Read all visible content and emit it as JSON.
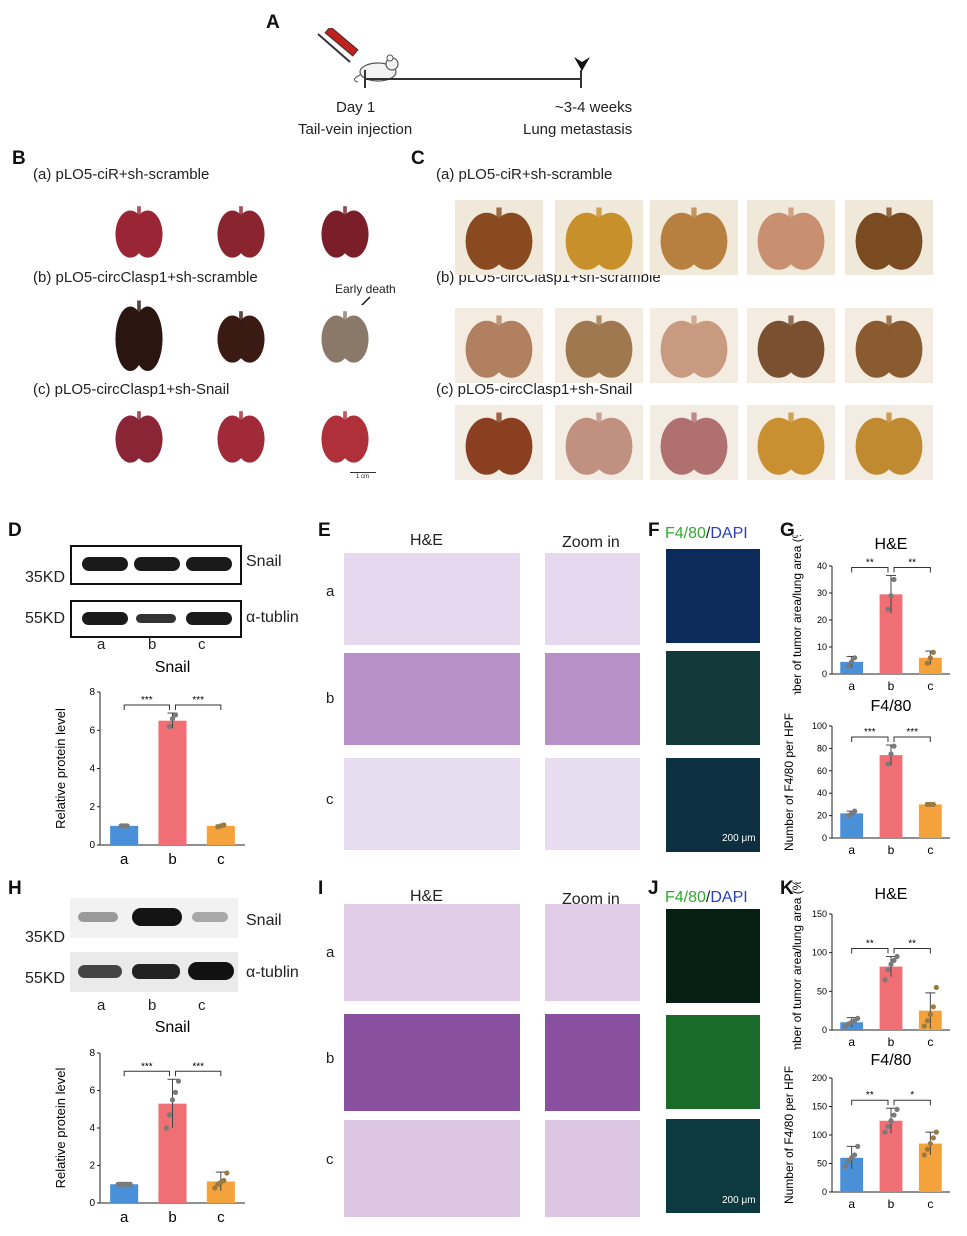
{
  "panel_labels": {
    "A": "A",
    "B": "B",
    "C": "C",
    "D": "D",
    "E": "E",
    "F": "F",
    "G": "G",
    "H": "H",
    "I": "I",
    "J": "J",
    "K": "K"
  },
  "timeline": {
    "day1": "Day 1",
    "injection": "Tail-vein injection",
    "weeks": "~3-4 weeks",
    "metastasis": "Lung metastasis"
  },
  "groups": {
    "a": "(a) pLO5-ciR+sh-scramble",
    "b": "(b) pLO5-circClasp1+sh-scramble",
    "c": "(c) pLO5-circClasp1+sh-Snail"
  },
  "early_death": "Early death",
  "scale_1cm": "1 cm",
  "blot": {
    "kd35": "35KD",
    "kd55": "55KD",
    "snail": "Snail",
    "tublin": "α-tublin",
    "lanes": [
      "a",
      "b",
      "c"
    ]
  },
  "he": {
    "title": "H&E",
    "zoom": "Zoom in",
    "rows": [
      "a",
      "b",
      "c"
    ]
  },
  "f480": {
    "f4": "F4/80",
    "slash": "/",
    "dapi": "DAPI",
    "scale": "200 μm"
  },
  "colors": {
    "a": "#4a90d9",
    "b": "#ef6f74",
    "c": "#f4a23c"
  },
  "chart_data": [
    {
      "id": "D",
      "type": "bar",
      "title": "Snail",
      "ylabel": "Relative protein level",
      "categories": [
        "a",
        "b",
        "c"
      ],
      "values": [
        1.0,
        6.5,
        1.0
      ],
      "errors": [
        0.05,
        0.4,
        0.05
      ],
      "points": [
        [
          1,
          1,
          1
        ],
        [
          6.2,
          6.6,
          6.8
        ],
        [
          0.95,
          1.0,
          1.05
        ]
      ],
      "ylim": [
        0,
        8
      ],
      "yticks": [
        0,
        2,
        4,
        6,
        8
      ],
      "sig": [
        {
          "from": 0,
          "to": 1,
          "label": "***"
        },
        {
          "from": 1,
          "to": 2,
          "label": "***"
        }
      ]
    },
    {
      "id": "G1",
      "type": "bar",
      "title": "H&E",
      "ylabel": "Number of tumor area/lung area (%)",
      "categories": [
        "a",
        "b",
        "c"
      ],
      "values": [
        4.5,
        29.5,
        6.0
      ],
      "errors": [
        2,
        7,
        2.5
      ],
      "points": [
        [
          3,
          4.5,
          6
        ],
        [
          24,
          29,
          35
        ],
        [
          4,
          6,
          8
        ]
      ],
      "ylim": [
        0,
        40
      ],
      "yticks": [
        0,
        10,
        20,
        30,
        40
      ],
      "sig": [
        {
          "from": 0,
          "to": 1,
          "label": "**"
        },
        {
          "from": 1,
          "to": 2,
          "label": "**"
        }
      ]
    },
    {
      "id": "G2",
      "type": "bar",
      "title": "F4/80",
      "ylabel": "Number of F4/80 per HPF",
      "categories": [
        "a",
        "b",
        "c"
      ],
      "values": [
        22,
        74,
        30
      ],
      "errors": [
        2,
        9,
        1
      ],
      "points": [
        [
          20,
          22,
          24
        ],
        [
          66,
          75,
          82
        ],
        [
          30,
          30,
          30
        ]
      ],
      "ylim": [
        0,
        100
      ],
      "yticks": [
        0,
        20,
        40,
        60,
        80,
        100
      ],
      "sig": [
        {
          "from": 0,
          "to": 1,
          "label": "***"
        },
        {
          "from": 1,
          "to": 2,
          "label": "***"
        }
      ]
    },
    {
      "id": "H",
      "type": "bar",
      "title": "Snail",
      "ylabel": "Relative protein level",
      "categories": [
        "a",
        "b",
        "c"
      ],
      "values": [
        1.0,
        5.3,
        1.15
      ],
      "errors": [
        0.05,
        1.3,
        0.5
      ],
      "points": [
        [
          1,
          1,
          1,
          1,
          1
        ],
        [
          4.0,
          4.7,
          5.5,
          5.9,
          6.5
        ],
        [
          0.8,
          1.0,
          1.1,
          1.2,
          1.6
        ]
      ],
      "ylim": [
        0,
        8
      ],
      "yticks": [
        0,
        2,
        4,
        6,
        8
      ],
      "sig": [
        {
          "from": 0,
          "to": 1,
          "label": "***"
        },
        {
          "from": 1,
          "to": 2,
          "label": "***"
        }
      ]
    },
    {
      "id": "K1",
      "type": "bar",
      "title": "H&E",
      "ylabel": "Number of tumor area/lung area (%)",
      "categories": [
        "a",
        "b",
        "c"
      ],
      "values": [
        10,
        82,
        25
      ],
      "errors": [
        6,
        13,
        23
      ],
      "points": [
        [
          5,
          8,
          10,
          12,
          15
        ],
        [
          65,
          78,
          85,
          90,
          95
        ],
        [
          5,
          12,
          20,
          30,
          55
        ]
      ],
      "ylim": [
        0,
        150
      ],
      "yticks": [
        0,
        50,
        100,
        150
      ],
      "sig": [
        {
          "from": 0,
          "to": 1,
          "label": "**"
        },
        {
          "from": 1,
          "to": 2,
          "label": "**"
        }
      ]
    },
    {
      "id": "K2",
      "type": "bar",
      "title": "F4/80",
      "ylabel": "Number of F4/80 per HPF",
      "categories": [
        "a",
        "b",
        "c"
      ],
      "values": [
        60,
        125,
        85
      ],
      "errors": [
        20,
        22,
        20
      ],
      "points": [
        [
          45,
          55,
          60,
          65,
          80
        ],
        [
          105,
          115,
          125,
          135,
          145
        ],
        [
          65,
          75,
          85,
          95,
          105
        ]
      ],
      "ylim": [
        0,
        200
      ],
      "yticks": [
        0,
        50,
        100,
        150,
        200
      ],
      "sig": [
        {
          "from": 0,
          "to": 1,
          "label": "**"
        },
        {
          "from": 1,
          "to": 2,
          "label": "*"
        }
      ]
    }
  ]
}
